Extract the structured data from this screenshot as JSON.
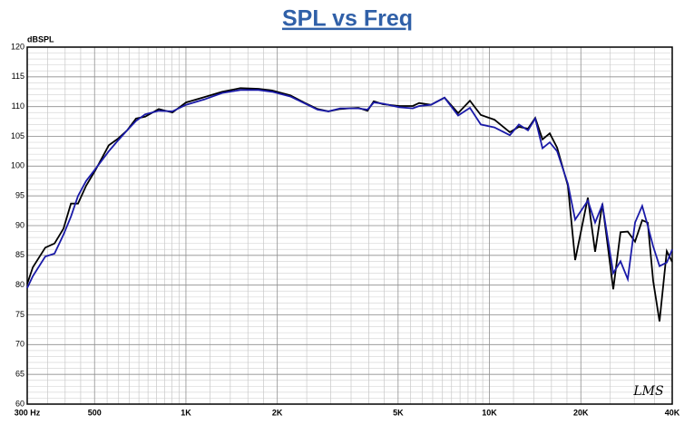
{
  "chart_data": {
    "type": "line",
    "title": "SPL vs Freq",
    "ylabel": "dBSPL",
    "watermark": "LMS",
    "xscale": "log",
    "grid": true,
    "x": [
      300,
      313,
      344,
      369,
      395,
      418,
      441,
      469,
      503,
      557,
      597,
      640,
      685,
      734,
      814,
      902,
      1000,
      1148,
      1317,
      1512,
      1735,
      1924,
      2207,
      2447,
      2714,
      2947,
      3223,
      3699,
      3963,
      4158,
      4455,
      5040,
      5589,
      5865,
      6414,
      7113,
      7884,
      8622,
      9363,
      10383,
      11670,
      12501,
      13395,
      14154,
      14955,
      15798,
      16698,
      18126,
      19152,
      21093,
      22287,
      23547,
      25572,
      27024,
      28551,
      30165,
      31860,
      33210,
      34620,
      36330,
      38370,
      40000
    ],
    "series": [
      {
        "color": "#000000",
        "values": [
          80.2,
          83,
          86.3,
          87,
          89.5,
          93.7,
          93.7,
          96.7,
          99.3,
          103.5,
          104.6,
          106,
          108,
          108.3,
          109.6,
          109,
          110.7,
          111.6,
          112.5,
          113.1,
          113,
          112.7,
          111.9,
          110.7,
          109.6,
          109.2,
          109.6,
          109.8,
          109.3,
          110.9,
          110.4,
          110.1,
          110.1,
          110.6,
          110.3,
          111.5,
          108.9,
          111,
          108.6,
          107.8,
          105.7,
          106.6,
          106.3,
          108.1,
          104.5,
          105.5,
          103.1,
          96.7,
          84.2,
          94.7,
          85.6,
          93.7,
          79.3,
          88.9,
          89,
          87.3,
          90.9,
          90.5,
          80.7,
          73.9,
          85.7,
          83.9
        ]
      },
      {
        "color": "#1a1aa8",
        "values": [
          79.5,
          81.5,
          84.8,
          85.3,
          88.5,
          91.5,
          95,
          97.5,
          99.5,
          102.5,
          104.3,
          106,
          107.6,
          108.7,
          109.3,
          109.2,
          110.3,
          111.2,
          112.3,
          112.8,
          112.8,
          112.5,
          111.7,
          110.6,
          109.5,
          109.2,
          109.7,
          109.7,
          109.5,
          110.7,
          110.5,
          109.9,
          109.7,
          110.1,
          110.3,
          111.5,
          108.5,
          109.8,
          107,
          106.5,
          105.2,
          107,
          106,
          108,
          103,
          104,
          102.5,
          97,
          91,
          94.2,
          90.5,
          93.5,
          82,
          84,
          81,
          90.5,
          93.3,
          90,
          86.5,
          83.2,
          83.8,
          86
        ]
      }
    ],
    "xlim": [
      300,
      40000
    ],
    "xticks": [
      {
        "value": 300,
        "label": "300  Hz"
      },
      500,
      {
        "value": 1000,
        "label": "1K"
      },
      {
        "value": 2000,
        "label": "2K"
      },
      {
        "value": 5000,
        "label": "5K"
      },
      {
        "value": 10000,
        "label": "10K"
      },
      {
        "value": 20000,
        "label": "20K"
      },
      {
        "value": 40000,
        "label": "40K"
      }
    ],
    "xminor": [
      350,
      400,
      450,
      550,
      600,
      650,
      700,
      750,
      800,
      850,
      900,
      950,
      1200,
      1400,
      1600,
      1800,
      2500,
      3000,
      3500,
      4000,
      4500,
      5500,
      6000,
      6500,
      7000,
      7500,
      8000,
      8500,
      9000,
      9500,
      12000,
      14000,
      16000,
      18000,
      25000,
      30000,
      35000
    ],
    "ylim": [
      60,
      120
    ],
    "yticks": [
      60,
      65,
      70,
      75,
      80,
      85,
      90,
      95,
      100,
      105,
      110,
      115,
      120
    ],
    "ygrid_step": 1
  }
}
